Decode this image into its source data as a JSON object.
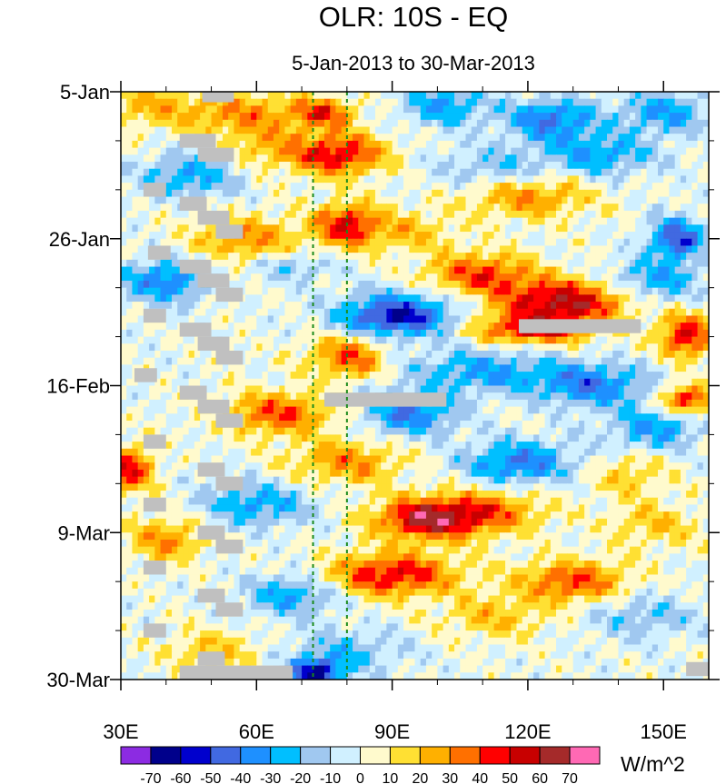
{
  "chart_data": {
    "type": "heatmap",
    "title": "OLR: 10S - EQ",
    "subtitle": "5-Jan-2013 to 30-Mar-2013",
    "xlabel": "",
    "ylabel": "",
    "units": "W/m^2",
    "x_range": [
      30,
      160
    ],
    "y_range_days": [
      0,
      84
    ],
    "x_ticks": [
      {
        "value": 30,
        "label": "30E"
      },
      {
        "value": 60,
        "label": "60E"
      },
      {
        "value": 90,
        "label": "90E"
      },
      {
        "value": 120,
        "label": "120E"
      },
      {
        "value": 150,
        "label": "150E"
      }
    ],
    "y_ticks": [
      {
        "day": 0,
        "label": "5-Jan"
      },
      {
        "day": 21,
        "label": "26-Jan"
      },
      {
        "day": 42,
        "label": "16-Feb"
      },
      {
        "day": 63,
        "label": "9-Mar"
      },
      {
        "day": 84,
        "label": "30-Mar"
      }
    ],
    "reference_lines_lon": [
      72.5,
      80
    ],
    "colorbar": {
      "levels": [
        -70,
        -60,
        -50,
        -40,
        -30,
        -20,
        -10,
        0,
        10,
        20,
        30,
        40,
        50,
        60,
        70
      ],
      "colors": [
        "#8c2be2",
        "#00008b",
        "#0000cd",
        "#4169e1",
        "#1e90ff",
        "#00bfff",
        "#a0c8f0",
        "#d0f0ff",
        "#fffacd",
        "#ffe033",
        "#ffb000",
        "#ff7000",
        "#ff0000",
        "#c80000",
        "#a52a2a",
        "#ff69b4"
      ]
    },
    "anomaly_features": [
      {
        "lon": 36,
        "day": 2,
        "value": 20,
        "w": 9,
        "h": 3
      },
      {
        "lon": 56,
        "day": 3,
        "value": 30,
        "w": 14,
        "h": 3
      },
      {
        "lon": 75,
        "day": 3,
        "value": 40,
        "w": 7,
        "h": 2
      },
      {
        "lon": 102,
        "day": 2,
        "value": -30,
        "w": 9,
        "h": 3
      },
      {
        "lon": 125,
        "day": 4,
        "value": -40,
        "w": 10,
        "h": 3
      },
      {
        "lon": 150,
        "day": 3,
        "value": -30,
        "w": 10,
        "h": 3
      },
      {
        "lon": 78,
        "day": 9,
        "value": 50,
        "w": 10,
        "h": 3
      },
      {
        "lon": 62,
        "day": 8,
        "value": 20,
        "w": 10,
        "h": 3
      },
      {
        "lon": 112,
        "day": 11,
        "value": -20,
        "w": 12,
        "h": 3
      },
      {
        "lon": 136,
        "day": 9,
        "value": -30,
        "w": 12,
        "h": 3
      },
      {
        "lon": 45,
        "day": 12,
        "value": -30,
        "w": 10,
        "h": 3
      },
      {
        "lon": 120,
        "day": 15,
        "value": 30,
        "w": 14,
        "h": 3
      },
      {
        "lon": 80,
        "day": 19,
        "value": 50,
        "w": 7,
        "h": 3
      },
      {
        "lon": 94,
        "day": 20,
        "value": 20,
        "w": 10,
        "h": 3
      },
      {
        "lon": 153,
        "day": 21,
        "value": -50,
        "w": 6,
        "h": 3
      },
      {
        "lon": 58,
        "day": 21,
        "value": 30,
        "w": 12,
        "h": 3
      },
      {
        "lon": 40,
        "day": 27,
        "value": -40,
        "w": 9,
        "h": 3
      },
      {
        "lon": 68,
        "day": 25,
        "value": -20,
        "w": 8,
        "h": 2
      },
      {
        "lon": 110,
        "day": 26,
        "value": 40,
        "w": 12,
        "h": 3
      },
      {
        "lon": 148,
        "day": 27,
        "value": -30,
        "w": 10,
        "h": 3
      },
      {
        "lon": 91,
        "day": 32,
        "value": -60,
        "w": 12,
        "h": 3
      },
      {
        "lon": 128,
        "day": 30,
        "value": 60,
        "w": 14,
        "h": 3
      },
      {
        "lon": 121,
        "day": 34,
        "value": 50,
        "w": 12,
        "h": 2
      },
      {
        "lon": 155,
        "day": 35,
        "value": 50,
        "w": 6,
        "h": 3
      },
      {
        "lon": 80,
        "day": 38,
        "value": 40,
        "w": 8,
        "h": 3
      },
      {
        "lon": 110,
        "day": 40,
        "value": -30,
        "w": 16,
        "h": 3
      },
      {
        "lon": 155,
        "day": 44,
        "value": 50,
        "w": 6,
        "h": 2
      },
      {
        "lon": 134,
        "day": 42,
        "value": -40,
        "w": 12,
        "h": 3
      },
      {
        "lon": 65,
        "day": 46,
        "value": 40,
        "w": 12,
        "h": 3
      },
      {
        "lon": 94,
        "day": 46,
        "value": -40,
        "w": 10,
        "h": 3
      },
      {
        "lon": 148,
        "day": 48,
        "value": -30,
        "w": 10,
        "h": 3
      },
      {
        "lon": 32,
        "day": 54,
        "value": 50,
        "w": 5,
        "h": 3
      },
      {
        "lon": 80,
        "day": 53,
        "value": 30,
        "w": 12,
        "h": 3
      },
      {
        "lon": 118,
        "day": 53,
        "value": -40,
        "w": 12,
        "h": 3
      },
      {
        "lon": 142,
        "day": 55,
        "value": 20,
        "w": 8,
        "h": 3
      },
      {
        "lon": 98,
        "day": 61,
        "value": 60,
        "w": 12,
        "h": 3
      },
      {
        "lon": 112,
        "day": 60,
        "value": 30,
        "w": 12,
        "h": 3
      },
      {
        "lon": 60,
        "day": 59,
        "value": -30,
        "w": 12,
        "h": 3
      },
      {
        "lon": 148,
        "day": 62,
        "value": 20,
        "w": 10,
        "h": 3
      },
      {
        "lon": 40,
        "day": 64,
        "value": 30,
        "w": 9,
        "h": 3
      },
      {
        "lon": 90,
        "day": 69,
        "value": 50,
        "w": 14,
        "h": 3
      },
      {
        "lon": 130,
        "day": 70,
        "value": 40,
        "w": 12,
        "h": 3
      },
      {
        "lon": 68,
        "day": 72,
        "value": -30,
        "w": 10,
        "h": 3
      },
      {
        "lon": 113,
        "day": 75,
        "value": 20,
        "w": 12,
        "h": 3
      },
      {
        "lon": 145,
        "day": 75,
        "value": -20,
        "w": 12,
        "h": 3
      },
      {
        "lon": 80,
        "day": 80,
        "value": -20,
        "w": 12,
        "h": 3
      },
      {
        "lon": 50,
        "day": 80,
        "value": 20,
        "w": 10,
        "h": 3
      },
      {
        "lon": 73,
        "day": 83,
        "value": -60,
        "w": 6,
        "h": 2
      }
    ],
    "missing_segments": [
      {
        "lon_start": 48,
        "lon_end": 55,
        "day_start": 0,
        "day_end": 1.5
      },
      {
        "lon_start": 43,
        "lon_end": 51,
        "day_start": 6,
        "day_end": 8
      },
      {
        "lon_start": 47,
        "lon_end": 55,
        "day_start": 8,
        "day_end": 10
      },
      {
        "lon_start": 35,
        "lon_end": 40,
        "day_start": 13,
        "day_end": 15
      },
      {
        "lon_start": 43,
        "lon_end": 49,
        "day_start": 15,
        "day_end": 17
      },
      {
        "lon_start": 47,
        "lon_end": 54,
        "day_start": 17,
        "day_end": 19
      },
      {
        "lon_start": 51,
        "lon_end": 57,
        "day_start": 19,
        "day_end": 21
      },
      {
        "lon_start": 36,
        "lon_end": 41,
        "day_start": 22,
        "day_end": 24
      },
      {
        "lon_start": 43,
        "lon_end": 50,
        "day_start": 24,
        "day_end": 26
      },
      {
        "lon_start": 47,
        "lon_end": 54,
        "day_start": 26,
        "day_end": 28
      },
      {
        "lon_start": 51,
        "lon_end": 57,
        "day_start": 28,
        "day_end": 30
      },
      {
        "lon_start": 35,
        "lon_end": 40,
        "day_start": 31,
        "day_end": 33
      },
      {
        "lon_start": 43,
        "lon_end": 50,
        "day_start": 33,
        "day_end": 35
      },
      {
        "lon_start": 47,
        "lon_end": 54,
        "day_start": 35,
        "day_end": 37
      },
      {
        "lon_start": 51,
        "lon_end": 57,
        "day_start": 37,
        "day_end": 39
      },
      {
        "lon_start": 33,
        "lon_end": 38,
        "day_start": 39.5,
        "day_end": 41.5
      },
      {
        "lon_start": 43,
        "lon_end": 49,
        "day_start": 42,
        "day_end": 44
      },
      {
        "lon_start": 47,
        "lon_end": 54,
        "day_start": 44,
        "day_end": 46
      },
      {
        "lon_start": 51,
        "lon_end": 57,
        "day_start": 46,
        "day_end": 48
      },
      {
        "lon_start": 35,
        "lon_end": 40,
        "day_start": 49,
        "day_end": 51
      },
      {
        "lon_start": 47,
        "lon_end": 53,
        "day_start": 53,
        "day_end": 55
      },
      {
        "lon_start": 51,
        "lon_end": 57,
        "day_start": 55,
        "day_end": 57
      },
      {
        "lon_start": 35,
        "lon_end": 40,
        "day_start": 58,
        "day_end": 60
      },
      {
        "lon_start": 47,
        "lon_end": 53,
        "day_start": 62,
        "day_end": 64
      },
      {
        "lon_start": 51,
        "lon_end": 57,
        "day_start": 64,
        "day_end": 66
      },
      {
        "lon_start": 35,
        "lon_end": 40,
        "day_start": 67,
        "day_end": 69
      },
      {
        "lon_start": 47,
        "lon_end": 53,
        "day_start": 71,
        "day_end": 73
      },
      {
        "lon_start": 51,
        "lon_end": 57,
        "day_start": 73,
        "day_end": 75
      },
      {
        "lon_start": 35,
        "lon_end": 40,
        "day_start": 76,
        "day_end": 78
      },
      {
        "lon_start": 47,
        "lon_end": 53,
        "day_start": 80,
        "day_end": 82
      },
      {
        "lon_start": 43,
        "lon_end": 68,
        "day_start": 82,
        "day_end": 84
      },
      {
        "lon_start": 75,
        "lon_end": 102,
        "day_start": 43,
        "day_end": 45
      },
      {
        "lon_start": 118,
        "lon_end": 145,
        "day_start": 32.5,
        "day_end": 34.5
      },
      {
        "lon_start": 155,
        "lon_end": 160,
        "day_start": 81.5,
        "day_end": 83.5
      }
    ]
  }
}
